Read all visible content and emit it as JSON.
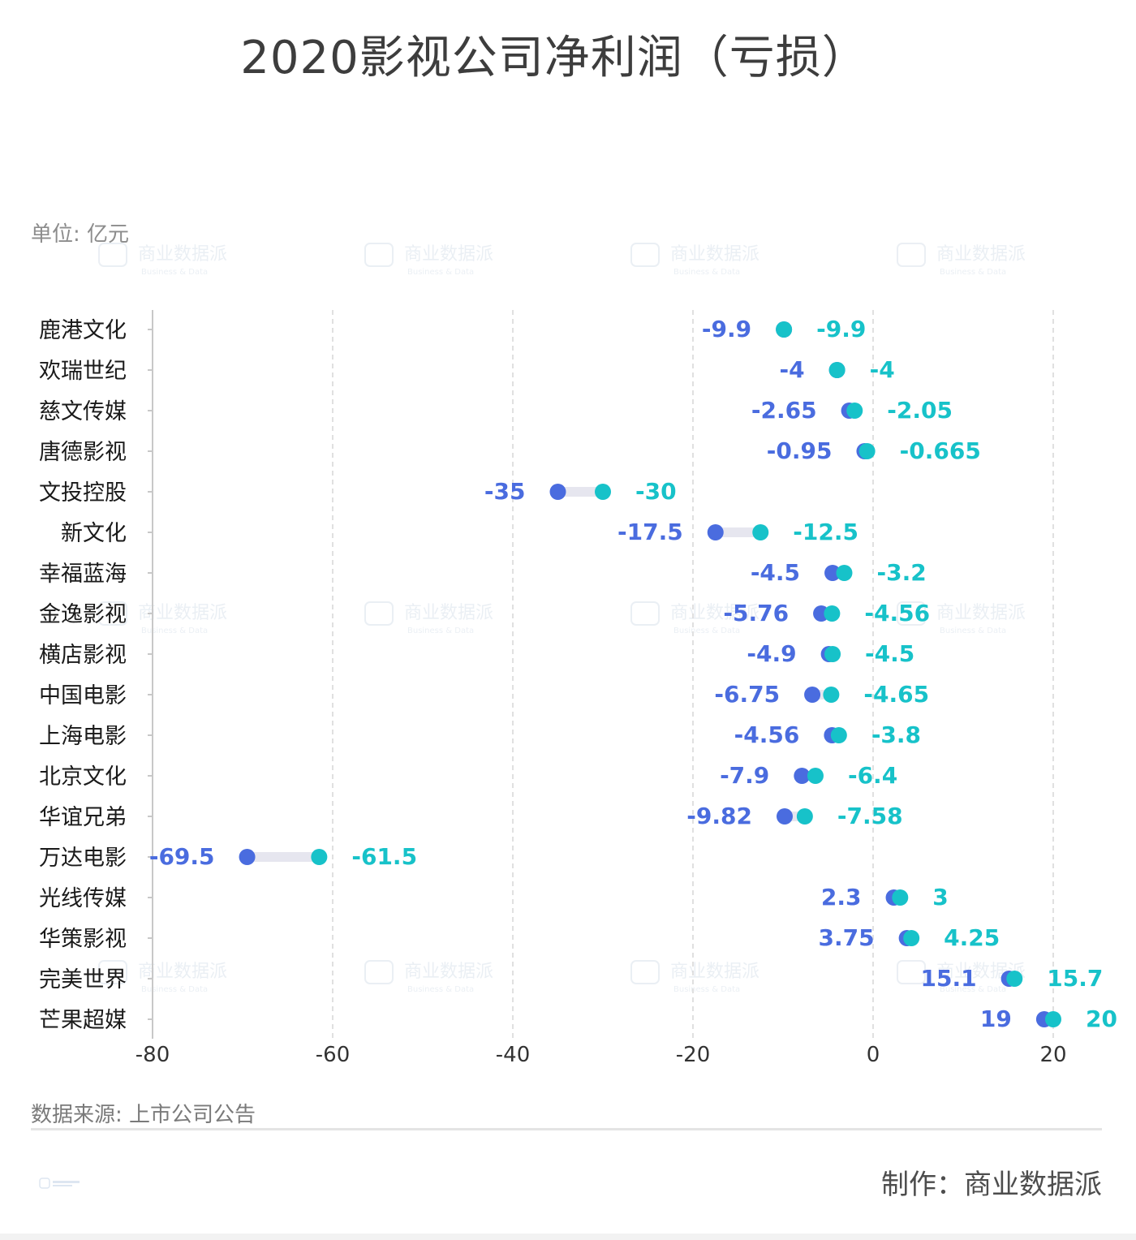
{
  "title": "2020影视公司净利润（亏损）",
  "unit_label": "单位: 亿元",
  "source_label": "数据来源: 上市公司公告",
  "credit_label": "制作：商业数据派",
  "watermark": {
    "text": "商业数据派",
    "subtext": "Business & Data"
  },
  "colors": {
    "low": "#4a6cdf",
    "high": "#17c2c9",
    "connector": "#e6e6ef",
    "grid": "#d6d6d6",
    "axis": "#c8c8c8",
    "label": "#1a1a1a"
  },
  "chart_data": {
    "type": "dumbbell",
    "title": "2020影视公司净利润（亏损）",
    "ylabel": "单位: 亿元",
    "xlim": [
      -80,
      20
    ],
    "xticks": [
      -80,
      -60,
      -40,
      -20,
      0,
      20
    ],
    "grid": "vertical dashed",
    "categories": [
      "鹿港文化",
      "欢瑞世纪",
      "慈文传媒",
      "唐德影视",
      "文投控股",
      "新文化",
      "幸福蓝海",
      "金逸影视",
      "横店影视",
      "中国电影",
      "上海电影",
      "北京文化",
      "华谊兄弟",
      "万达电影",
      "光线传媒",
      "华策影视",
      "完美世界",
      "芒果超媒"
    ],
    "series": [
      {
        "values": [
          -9.9,
          -4,
          -2.65,
          -0.95,
          -35,
          -17.5,
          -4.5,
          -5.76,
          -4.9,
          -6.75,
          -4.56,
          -7.9,
          -9.82,
          -69.5,
          2.3,
          3.75,
          15.1,
          19
        ]
      },
      {
        "values": [
          -9.9,
          -4,
          -2.05,
          -0.665,
          -30,
          -12.5,
          -3.2,
          -4.56,
          -4.5,
          -4.65,
          -3.8,
          -6.4,
          -7.58,
          -61.5,
          3,
          4.25,
          15.7,
          20
        ]
      }
    ]
  }
}
